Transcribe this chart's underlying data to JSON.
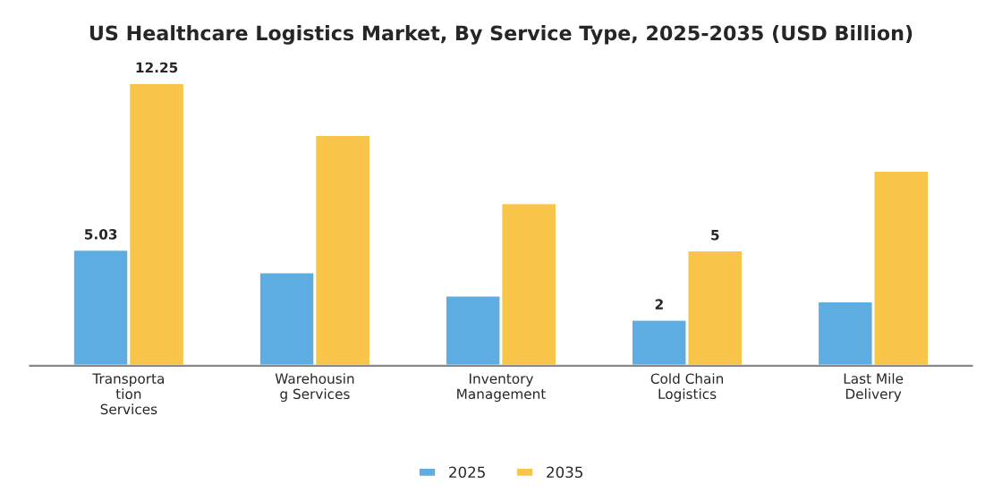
{
  "chart_data": {
    "type": "bar",
    "title": "US Healthcare Logistics Market, By Service Type, 2025-2035 (USD Billion)",
    "categories": [
      "Transporta\ntion\nServices",
      "Warehousin\ng Services",
      "Inventory\nManagement",
      "Cold Chain\nLogistics",
      "Last Mile\nDelivery"
    ],
    "series": [
      {
        "name": "2025",
        "color": "#5dade2",
        "values": [
          5.03,
          4.05,
          3.05,
          2,
          2.8
        ],
        "value_labels": [
          "5.03",
          null,
          null,
          "2",
          null
        ]
      },
      {
        "name": "2035",
        "color": "#f9c44a",
        "values": [
          12.25,
          10.0,
          7.05,
          5,
          8.45
        ],
        "value_labels": [
          "12.25",
          null,
          null,
          "5",
          null
        ]
      }
    ],
    "grid": false,
    "legend": "bottom"
  }
}
